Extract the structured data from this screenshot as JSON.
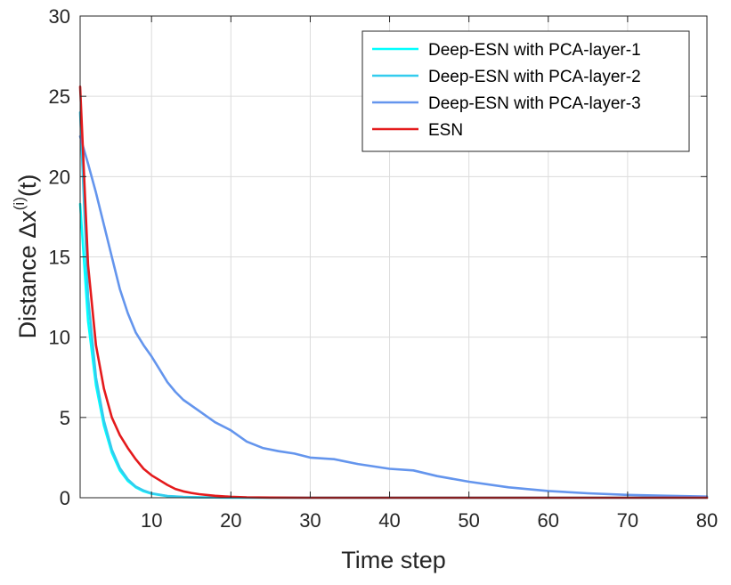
{
  "chart_data": {
    "type": "line",
    "xlabel": "Time step",
    "ylabel": {
      "main": "Distance  Δx",
      "sup": "(i)",
      "suffix": "(t)"
    },
    "xlim": [
      1,
      80
    ],
    "ylim": [
      0,
      30
    ],
    "xticks": [
      10,
      20,
      30,
      40,
      50,
      60,
      70,
      80
    ],
    "yticks": [
      0,
      5,
      10,
      15,
      20,
      25,
      30
    ],
    "grid": true,
    "legend_position": "top-right",
    "series": [
      {
        "name": "Deep-ESN with PCA-layer-1",
        "color": "#00FFFF",
        "x": [
          1,
          2,
          3,
          4,
          5,
          6,
          7,
          8,
          9,
          10,
          12,
          14,
          16,
          20,
          25,
          30,
          40,
          50,
          60,
          70,
          80
        ],
        "y": [
          18.3,
          11.0,
          7.0,
          4.5,
          2.8,
          1.7,
          1.05,
          0.65,
          0.4,
          0.25,
          0.1,
          0.04,
          0.02,
          0.01,
          0,
          0,
          0,
          0,
          0,
          0,
          0
        ]
      },
      {
        "name": "Deep-ESN with PCA-layer-2",
        "color": "#33CCEE",
        "x": [
          1,
          2,
          3,
          4,
          5,
          6,
          7,
          8,
          9,
          10,
          12,
          14,
          16,
          20,
          25,
          30,
          40,
          50,
          60,
          70,
          80
        ],
        "y": [
          24.0,
          12.5,
          7.5,
          4.8,
          3.0,
          1.85,
          1.15,
          0.7,
          0.45,
          0.28,
          0.11,
          0.05,
          0.02,
          0.01,
          0,
          0,
          0,
          0,
          0,
          0,
          0
        ]
      },
      {
        "name": "Deep-ESN with PCA-layer-3",
        "color": "#6495ED",
        "x": [
          1,
          2,
          3,
          4,
          5,
          6,
          7,
          8,
          9,
          10,
          11,
          12,
          13,
          14,
          16,
          18,
          20,
          22,
          24,
          26,
          28,
          30,
          33,
          36,
          40,
          43,
          46,
          50,
          55,
          60,
          65,
          70,
          75,
          80
        ],
        "y": [
          22.5,
          20.8,
          19.0,
          17.0,
          15.0,
          13.0,
          11.5,
          10.3,
          9.5,
          8.8,
          8.0,
          7.2,
          6.6,
          6.1,
          5.4,
          4.7,
          4.2,
          3.5,
          3.1,
          2.9,
          2.75,
          2.5,
          2.4,
          2.1,
          1.8,
          1.7,
          1.35,
          1.0,
          0.65,
          0.42,
          0.28,
          0.18,
          0.12,
          0.07
        ]
      },
      {
        "name": "ESN",
        "color": "#E41A1C",
        "x": [
          1,
          2,
          3,
          4,
          5,
          6,
          7,
          8,
          9,
          10,
          11,
          12,
          13,
          14,
          15,
          16,
          18,
          20,
          22,
          25,
          30,
          40,
          50,
          60,
          70,
          80
        ],
        "y": [
          25.6,
          14.5,
          9.5,
          6.8,
          5.0,
          3.9,
          3.1,
          2.4,
          1.8,
          1.4,
          1.1,
          0.8,
          0.55,
          0.4,
          0.3,
          0.22,
          0.12,
          0.06,
          0.03,
          0.01,
          0,
          0,
          0,
          0,
          0,
          0
        ]
      }
    ]
  }
}
